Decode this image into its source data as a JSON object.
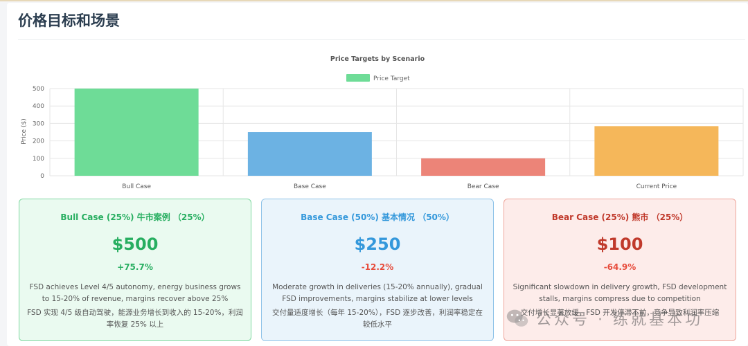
{
  "section": {
    "title": "价格目标和场景"
  },
  "chart_data": {
    "type": "bar",
    "title": "Price Targets by Scenario",
    "ylabel": "Price ($)",
    "xlabel": "",
    "categories": [
      "Bull Case",
      "Base Case",
      "Bear Case",
      "Current Price"
    ],
    "series": [
      {
        "name": "Price Target",
        "values": [
          500,
          250,
          100,
          284.5
        ]
      }
    ],
    "bar_colors": [
      "#6edc97",
      "#6cb2e3",
      "#ec8478",
      "#f5b75a"
    ],
    "legend_color": "#6edc97",
    "yticks": [
      0,
      100,
      200,
      300,
      400,
      500
    ],
    "ylim": [
      0,
      500
    ],
    "grid": true,
    "legend_position": "top"
  },
  "scenarios": [
    {
      "title": "Bull Case (25%)  牛市案例 （25%）",
      "price": "$500",
      "change": "+75.7%",
      "desc": "FSD achieves Level 4/5 autonomy, energy business grows to 15-20% of revenue, margins recover above 25%",
      "desc_cn": "FSD 实现 4/5 级自动驾驶，能源业务增长到收入的 15-20%，利润率恢复 25% 以上"
    },
    {
      "title": "Base Case (50%)  基本情况 （50%）",
      "price": "$250",
      "change": "-12.2%",
      "desc": "Moderate growth in deliveries (15-20% annually), gradual FSD improvements, margins stabilize at lower levels",
      "desc_cn": "交付量适度增长（每年 15-20%），FSD 逐步改善，利润率稳定在较低水平"
    },
    {
      "title": "Bear Case (25%)  熊市 （25%）",
      "price": "$100",
      "change": "-64.9%",
      "desc": "Significant slowdown in delivery growth, FSD development stalls, margins compress due to competition",
      "desc_cn": "交付增长显著放缓，FSD 开发停滞不前，竞争导致利润率压缩"
    }
  ],
  "watermark": {
    "text": "公众号 · 练就基本功",
    "icon": "wechat-icon"
  }
}
